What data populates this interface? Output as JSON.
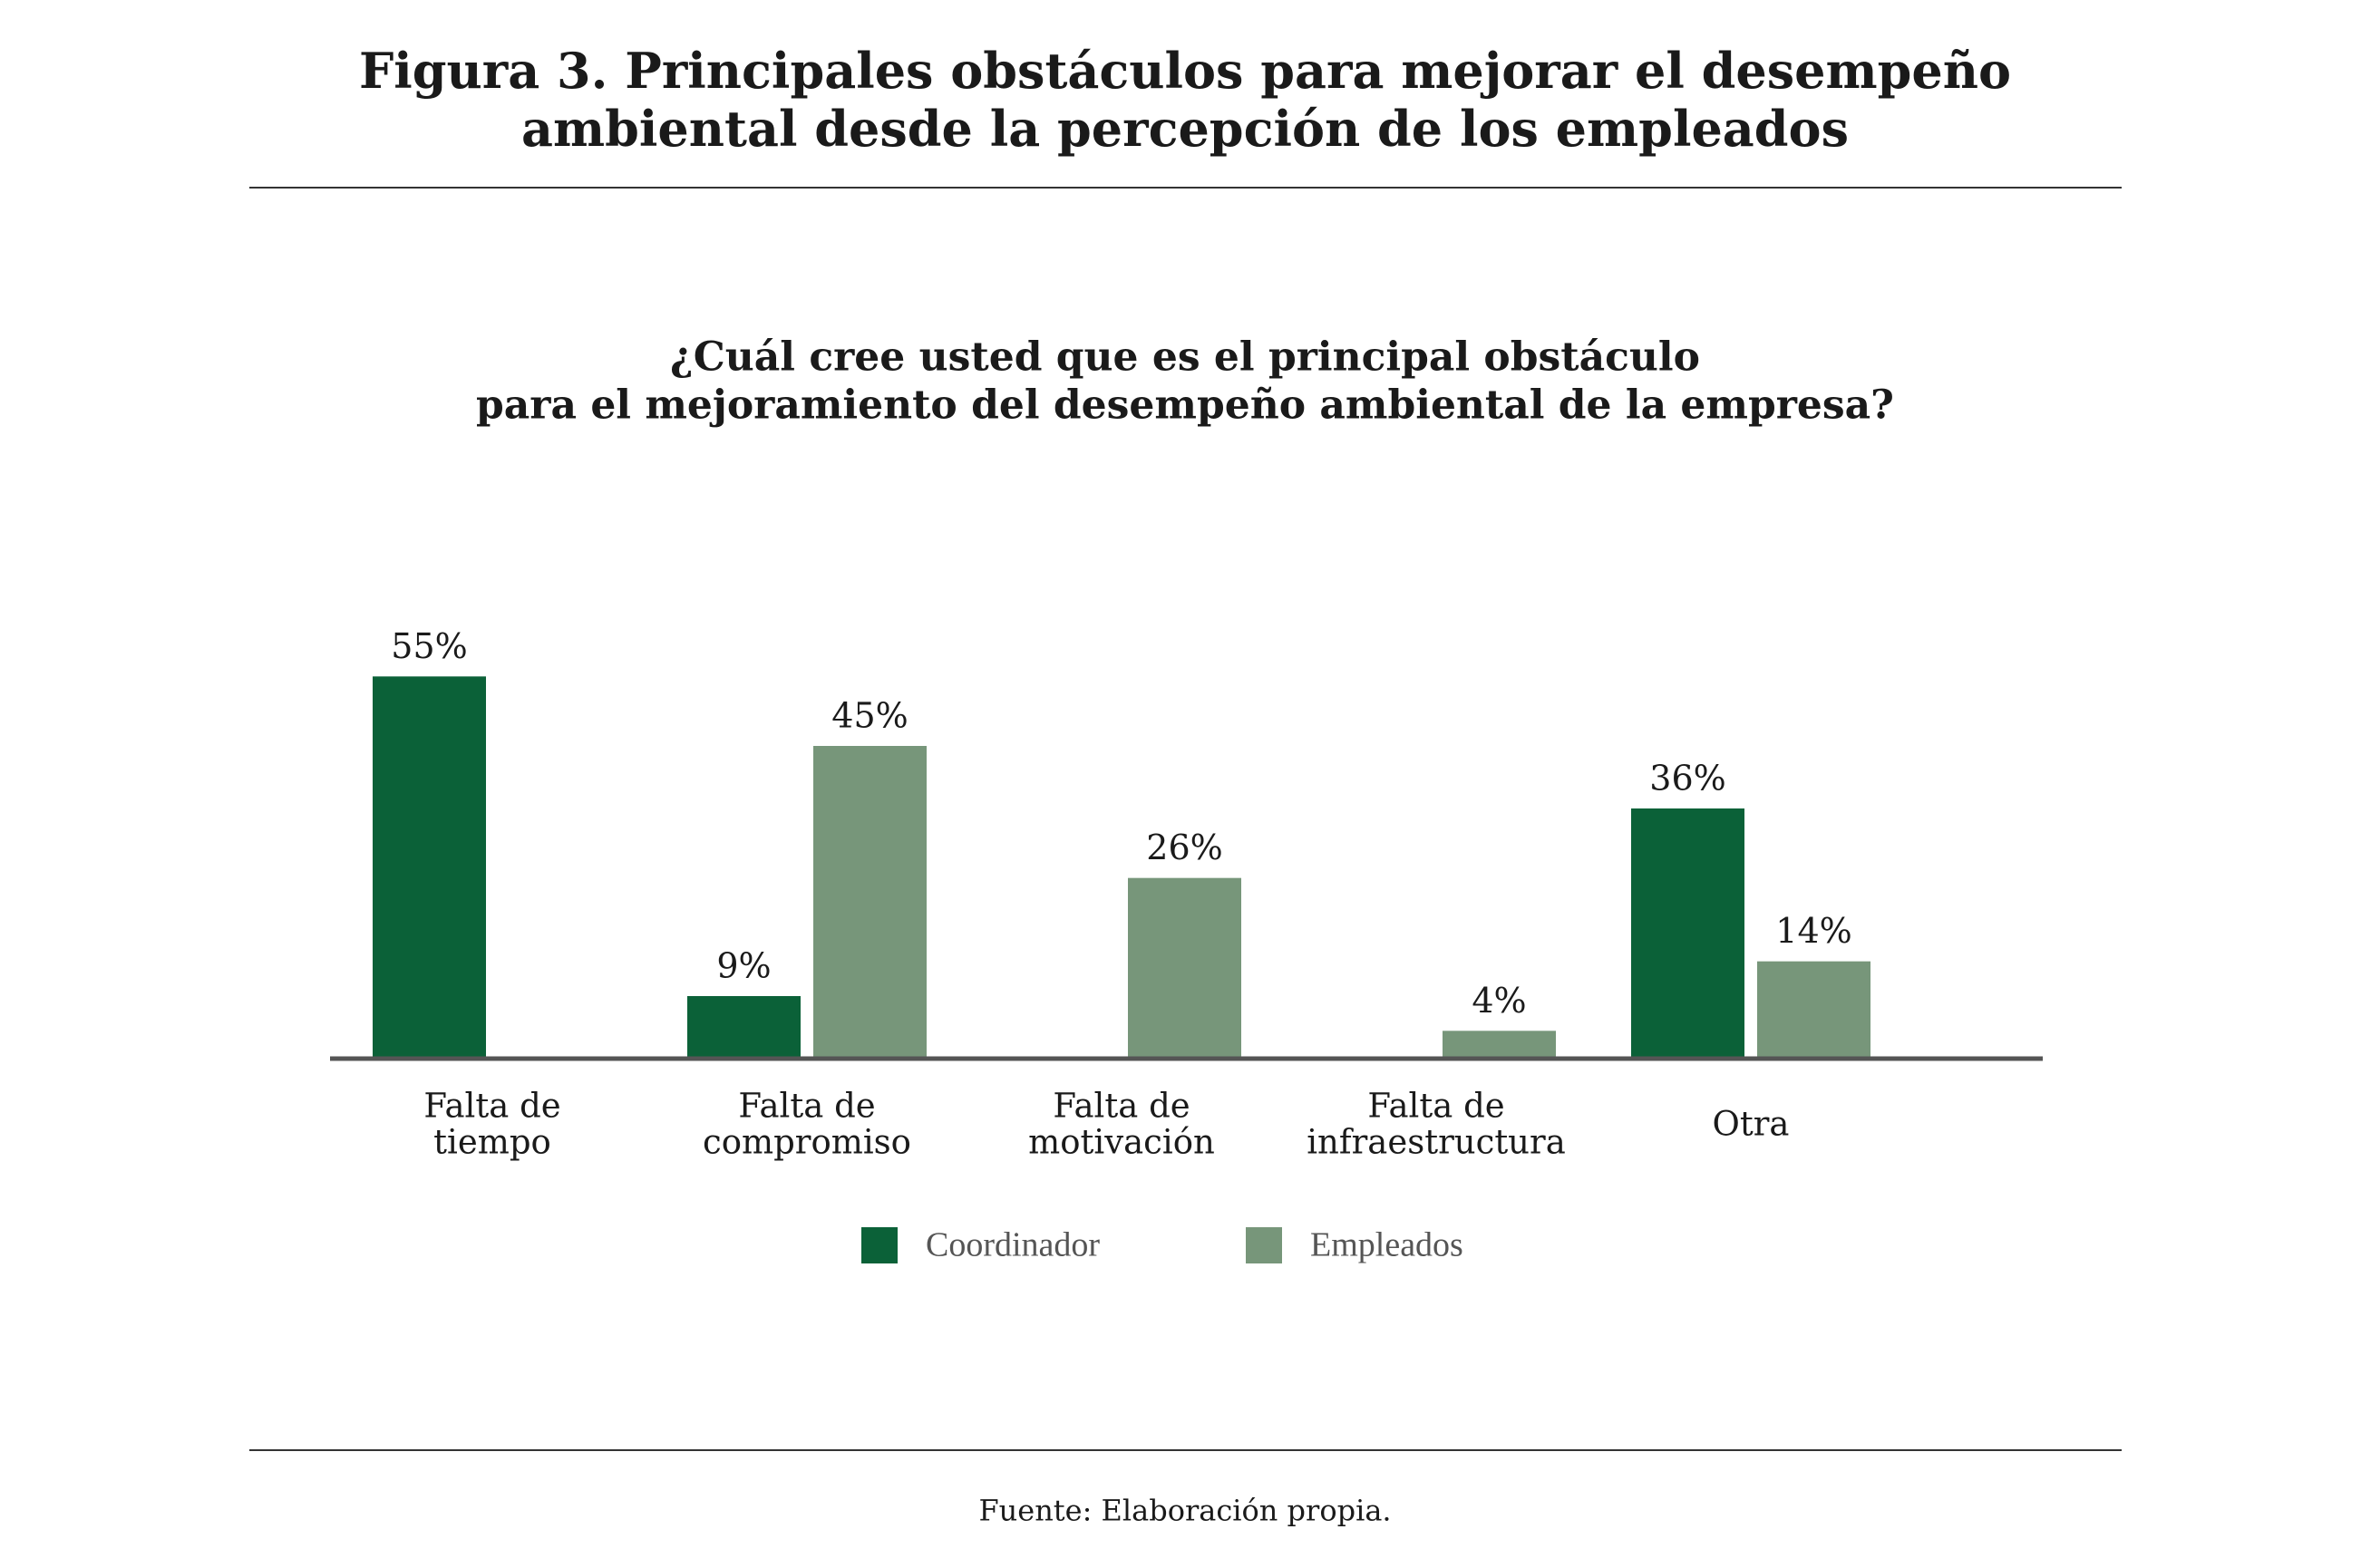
{
  "chart_data": {
    "type": "bar",
    "title": [
      "Figura 3. Principales obstáculos para mejorar el desempeño",
      "ambiental desde la percepción de los empleados"
    ],
    "subtitle": [
      "¿Cuál cree usted que es el principal obstáculo",
      "para el mejoramiento del desempeño ambiental de la empresa?"
    ],
    "categories": [
      [
        "Falta de",
        "tiempo"
      ],
      [
        "Falta de",
        "compromiso"
      ],
      [
        "Falta de",
        "motivación"
      ],
      [
        "Falta de",
        "infraestructura"
      ],
      [
        "Otra"
      ]
    ],
    "series": [
      {
        "name": "Coordinador",
        "color": "#0b6138",
        "values": [
          55,
          9,
          null,
          null,
          36
        ],
        "value_labels": [
          "55%",
          "9%",
          null,
          null,
          "36%"
        ]
      },
      {
        "name": "Empleados",
        "color": "#77967a",
        "values": [
          null,
          45,
          26,
          4,
          14
        ],
        "value_labels": [
          null,
          "45%",
          "26%",
          "4%",
          "14%"
        ]
      }
    ],
    "ylim": [
      0,
      60
    ],
    "legend": "bottom",
    "source": "Fuente: Elaboración propia."
  }
}
